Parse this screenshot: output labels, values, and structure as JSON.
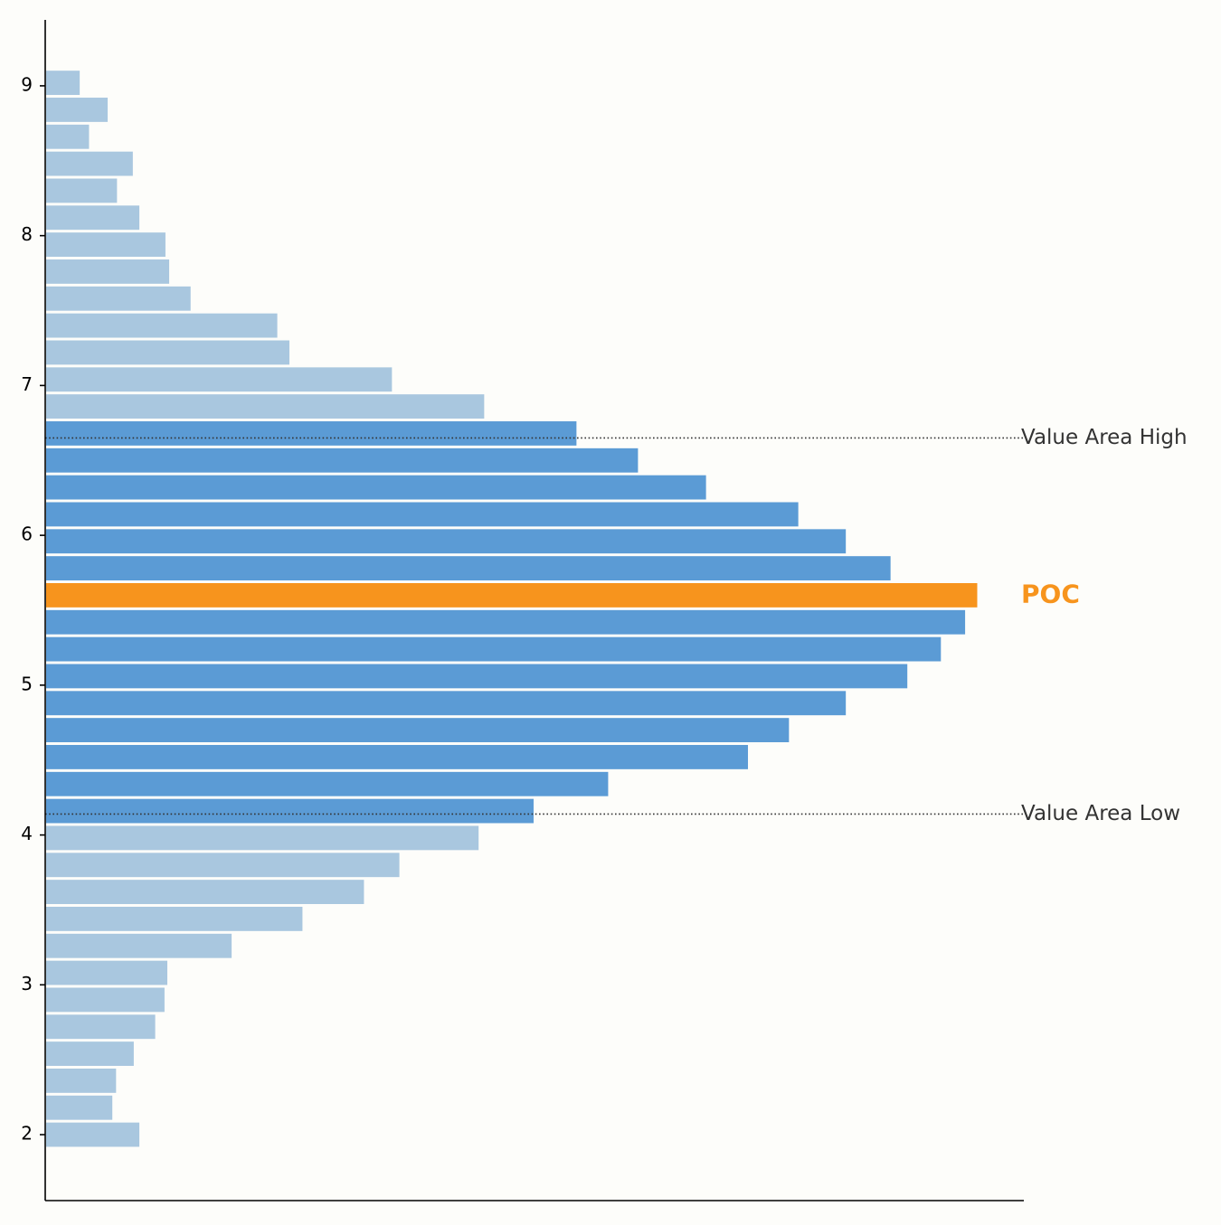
{
  "chart_data": {
    "type": "bar",
    "orientation": "horizontal",
    "title": "",
    "xlabel": "",
    "ylabel": "",
    "ylim": [
      1.56,
      9.44
    ],
    "xlim": [
      0,
      1.05
    ],
    "yticks": [
      2,
      3,
      4,
      5,
      6,
      7,
      8,
      9
    ],
    "ytick_labels": [
      "2",
      "3",
      "4",
      "5",
      "6",
      "7",
      "8",
      "9"
    ],
    "bin_height": 0.18,
    "bins": [
      {
        "price": 2.0,
        "volume": 0.101
      },
      {
        "price": 2.18,
        "volume": 0.072
      },
      {
        "price": 2.36,
        "volume": 0.076
      },
      {
        "price": 2.54,
        "volume": 0.095
      },
      {
        "price": 2.72,
        "volume": 0.118
      },
      {
        "price": 2.9,
        "volume": 0.128
      },
      {
        "price": 3.08,
        "volume": 0.131
      },
      {
        "price": 3.26,
        "volume": 0.2
      },
      {
        "price": 3.44,
        "volume": 0.276
      },
      {
        "price": 3.62,
        "volume": 0.342
      },
      {
        "price": 3.8,
        "volume": 0.38
      },
      {
        "price": 3.98,
        "volume": 0.465
      },
      {
        "price": 4.16,
        "volume": 0.524
      },
      {
        "price": 4.34,
        "volume": 0.604
      },
      {
        "price": 4.52,
        "volume": 0.754
      },
      {
        "price": 4.7,
        "volume": 0.798
      },
      {
        "price": 4.88,
        "volume": 0.859
      },
      {
        "price": 5.06,
        "volume": 0.925
      },
      {
        "price": 5.24,
        "volume": 0.961
      },
      {
        "price": 5.42,
        "volume": 0.987
      },
      {
        "price": 5.6,
        "volume": 1.0
      },
      {
        "price": 5.78,
        "volume": 0.907
      },
      {
        "price": 5.96,
        "volume": 0.859
      },
      {
        "price": 6.14,
        "volume": 0.808
      },
      {
        "price": 6.32,
        "volume": 0.709
      },
      {
        "price": 6.5,
        "volume": 0.636
      },
      {
        "price": 6.68,
        "volume": 0.57
      },
      {
        "price": 6.86,
        "volume": 0.471
      },
      {
        "price": 7.04,
        "volume": 0.372
      },
      {
        "price": 7.22,
        "volume": 0.262
      },
      {
        "price": 7.4,
        "volume": 0.249
      },
      {
        "price": 7.58,
        "volume": 0.156
      },
      {
        "price": 7.76,
        "volume": 0.133
      },
      {
        "price": 7.94,
        "volume": 0.129
      },
      {
        "price": 8.12,
        "volume": 0.101
      },
      {
        "price": 8.3,
        "volume": 0.077
      },
      {
        "price": 8.48,
        "volume": 0.094
      },
      {
        "price": 8.66,
        "volume": 0.047
      },
      {
        "price": 8.84,
        "volume": 0.067
      },
      {
        "price": 9.02,
        "volume": 0.037
      }
    ],
    "value_area_low": 4.14,
    "value_area_high": 6.65,
    "poc_price": 5.6,
    "annotations": {
      "value_area_high_label": "Value Area High",
      "poc_label": "POC",
      "value_area_low_label": "Value Area Low"
    },
    "colors": {
      "outside_value_area": "#a9c7df",
      "inside_value_area": "#5b9bd5",
      "poc": "#f7941d",
      "reference_line": "#333333",
      "axis": "#000000",
      "label_text": "#333333",
      "background": "#fdfdfa"
    },
    "grid": false,
    "legend": "none"
  }
}
